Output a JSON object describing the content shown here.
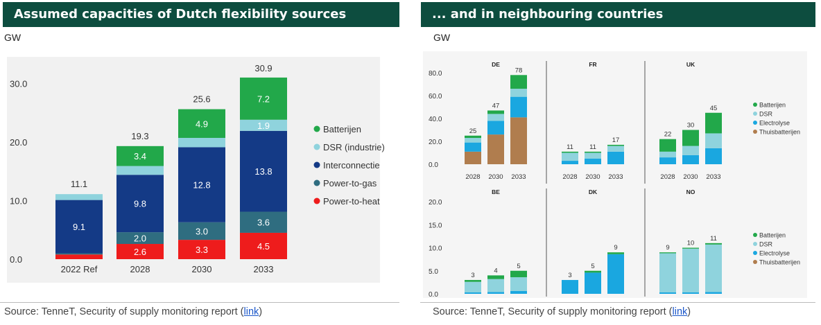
{
  "left_panel": {
    "title": "Assumed capacities of Dutch flexibility sources",
    "unit": "GW",
    "source_prefix": "Source: TenneT, Security of supply monitoring report (",
    "source_link": "link",
    "source_suffix": ")"
  },
  "right_panel": {
    "title": "... and in neighbouring countries",
    "unit": "GW",
    "source_prefix": "Source: TenneT, Security of supply monitoring report (",
    "source_link": "link",
    "source_suffix": ")"
  },
  "colors": {
    "batterijen": "#22a84a",
    "dsr": "#8fd3dd",
    "interconnectie": "#143a86",
    "power_to_gas": "#2f6d80",
    "power_to_heat": "#ee1c1c",
    "electrolyse": "#1aa7e0",
    "thuisbatterijen": "#b07d4e",
    "title_bg": "#0d4d3f"
  },
  "chart_data": [
    {
      "type": "bar",
      "stacked": true,
      "title": "Assumed capacities of Dutch flexibility sources",
      "ylabel": "GW",
      "ylim": [
        0,
        33
      ],
      "yticks": [
        "0.0",
        "10.0",
        "20.0",
        "30.0"
      ],
      "ytick_values": [
        0,
        10,
        20,
        30
      ],
      "categories": [
        "2022 Ref",
        "2028",
        "2030",
        "2033"
      ],
      "totals": [
        "11.1",
        "19.3",
        "25.6",
        "30.9"
      ],
      "total_values": [
        11.1,
        19.3,
        25.6,
        30.9
      ],
      "series": [
        {
          "name": "Power-to-heat",
          "color_key": "power_to_heat",
          "values": [
            0.8,
            2.6,
            3.3,
            4.5
          ],
          "labels": [
            "",
            "2.6",
            "3.3",
            "4.5"
          ]
        },
        {
          "name": "Power-to-gas",
          "color_key": "power_to_gas",
          "values": [
            0.2,
            2.0,
            3.0,
            3.6
          ],
          "labels": [
            "",
            "2.0",
            "3.0",
            "3.6"
          ]
        },
        {
          "name": "Interconnectie",
          "color_key": "interconnectie",
          "values": [
            9.1,
            9.8,
            12.8,
            13.8
          ],
          "labels": [
            "9.1",
            "9.8",
            "12.8",
            "13.8"
          ]
        },
        {
          "name": "DSR (industrie)",
          "color_key": "dsr",
          "values": [
            1.0,
            1.5,
            1.6,
            1.9
          ],
          "labels": [
            "",
            "",
            "",
            "1.9"
          ]
        },
        {
          "name": "Batterijen",
          "color_key": "batterijen",
          "values": [
            0,
            3.4,
            4.9,
            7.2
          ],
          "labels": [
            "",
            "3.4",
            "4.9",
            "7.2"
          ]
        }
      ],
      "legend": [
        "Batterijen",
        "DSR (industrie)",
        "Interconnectie",
        "Power-to-gas",
        "Power-to-heat"
      ],
      "legend_keys": [
        "batterijen",
        "dsr",
        "interconnectie",
        "power_to_gas",
        "power_to_heat"
      ],
      "legend_position": "right"
    },
    {
      "type": "bar",
      "stacked": true,
      "title": "... and in neighbouring countries",
      "ylabel": "GW",
      "rows": [
        {
          "ylim": [
            0,
            85
          ],
          "yticks": [
            "0.0",
            "20.0",
            "40.0",
            "60.0",
            "80.0"
          ],
          "ytick_values": [
            0,
            20,
            40,
            60,
            80
          ],
          "legend": [
            "Batterijen",
            "DSR",
            "Electrolyse",
            "Thuisbatterijen"
          ],
          "legend_keys": [
            "batterijen",
            "dsr",
            "electrolyse",
            "thuisbatterijen"
          ],
          "countries": [
            {
              "name": "DE",
              "categories": [
                "2028",
                "2030",
                "2033"
              ],
              "totals": [
                "25",
                "47",
                "78"
              ],
              "total_values": [
                25,
                47,
                78
              ],
              "segments": {
                "thuisbatterijen": [
                  11,
                  26,
                  41
                ],
                "electrolyse": [
                  8,
                  12,
                  18
                ],
                "dsr": [
                  4,
                  6,
                  7
                ],
                "batterijen": [
                  2,
                  3,
                  12
                ]
              }
            },
            {
              "name": "FR",
              "categories": [
                "2028",
                "2030",
                "2033"
              ],
              "totals": [
                "11",
                "11",
                "17"
              ],
              "total_values": [
                11,
                11,
                17
              ],
              "segments": {
                "thuisbatterijen": [
                  0,
                  0,
                  0
                ],
                "electrolyse": [
                  3,
                  5,
                  11
                ],
                "dsr": [
                  7,
                  5,
                  5
                ],
                "batterijen": [
                  1,
                  1,
                  1
                ]
              }
            },
            {
              "name": "UK",
              "categories": [
                "2028",
                "2030",
                "2033"
              ],
              "totals": [
                "22",
                "30",
                "45"
              ],
              "total_values": [
                22,
                30,
                45
              ],
              "segments": {
                "thuisbatterijen": [
                  0,
                  0,
                  0
                ],
                "electrolyse": [
                  6,
                  8,
                  14
                ],
                "dsr": [
                  5,
                  8,
                  13
                ],
                "batterijen": [
                  11,
                  14,
                  18
                ]
              }
            }
          ]
        },
        {
          "ylim": [
            0,
            21
          ],
          "yticks": [
            "0.0",
            "5.0",
            "10.0",
            "15.0",
            "20.0"
          ],
          "ytick_values": [
            0,
            5,
            10,
            15,
            20
          ],
          "legend": [
            "Batterijen",
            "DSR",
            "Electrolyse",
            "Thuisbatterijen"
          ],
          "legend_keys": [
            "batterijen",
            "dsr",
            "electrolyse",
            "thuisbatterijen"
          ],
          "countries": [
            {
              "name": "BE",
              "categories": [],
              "totals": [
                "3",
                "4",
                "5"
              ],
              "total_values": [
                3,
                4,
                5
              ],
              "segments": {
                "thuisbatterijen": [
                  0,
                  0,
                  0
                ],
                "electrolyse": [
                  0.3,
                  0.4,
                  0.6
                ],
                "dsr": [
                  2.3,
                  2.8,
                  3.0
                ],
                "batterijen": [
                  0.4,
                  0.8,
                  1.4
                ]
              }
            },
            {
              "name": "DK",
              "categories": [],
              "totals": [
                "3",
                "5",
                "9"
              ],
              "total_values": [
                3,
                5,
                9
              ],
              "segments": {
                "thuisbatterijen": [
                  0,
                  0,
                  0
                ],
                "electrolyse": [
                  3,
                  4.6,
                  8.6
                ],
                "dsr": [
                  0,
                  0,
                  0
                ],
                "batterijen": [
                  0,
                  0.4,
                  0.4
                ]
              }
            },
            {
              "name": "NO",
              "categories": [],
              "totals": [
                "9",
                "10",
                "11"
              ],
              "total_values": [
                9,
                10,
                11
              ],
              "segments": {
                "thuisbatterijen": [
                  0,
                  0,
                  0
                ],
                "electrolyse": [
                  0.3,
                  0.3,
                  0.4
                ],
                "dsr": [
                  8.5,
                  9.5,
                  10.3
                ],
                "batterijen": [
                  0.2,
                  0.2,
                  0.3
                ]
              }
            }
          ]
        }
      ]
    }
  ]
}
